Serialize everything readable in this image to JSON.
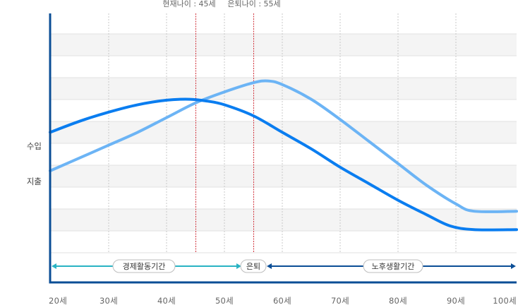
{
  "chart_data": {
    "type": "line",
    "title": "",
    "xlabel": "",
    "ylabel": "",
    "x_ticks": [
      "20세",
      "30세",
      "40세",
      "50세",
      "60세",
      "70세",
      "80세",
      "90세",
      "100세"
    ],
    "x_range": [
      20,
      100
    ],
    "y_labels": [
      "수입",
      "지출"
    ],
    "grid": true,
    "series": [
      {
        "name": "수입",
        "color": "#0a7df0",
        "points": [
          [
            20,
            0.61
          ],
          [
            25,
            0.67
          ],
          [
            30,
            0.72
          ],
          [
            35,
            0.76
          ],
          [
            40,
            0.785
          ],
          [
            44,
            0.79
          ],
          [
            47,
            0.78
          ],
          [
            50,
            0.76
          ],
          [
            55,
            0.7
          ],
          [
            60,
            0.61
          ],
          [
            65,
            0.52
          ],
          [
            70,
            0.42
          ],
          [
            75,
            0.33
          ],
          [
            80,
            0.24
          ],
          [
            85,
            0.16
          ],
          [
            89,
            0.1
          ],
          [
            93,
            0.08
          ],
          [
            100,
            0.08
          ]
        ]
      },
      {
        "name": "지출",
        "color": "#6cb4f5",
        "points": [
          [
            20,
            0.4
          ],
          [
            25,
            0.47
          ],
          [
            30,
            0.54
          ],
          [
            35,
            0.61
          ],
          [
            40,
            0.69
          ],
          [
            45,
            0.77
          ],
          [
            50,
            0.83
          ],
          [
            55,
            0.88
          ],
          [
            57.5,
            0.89
          ],
          [
            60,
            0.87
          ],
          [
            65,
            0.79
          ],
          [
            70,
            0.68
          ],
          [
            75,
            0.56
          ],
          [
            80,
            0.44
          ],
          [
            85,
            0.32
          ],
          [
            90,
            0.22
          ],
          [
            93,
            0.18
          ],
          [
            100,
            0.18
          ]
        ]
      }
    ],
    "markers": [
      {
        "label": "현재나이 : 45세",
        "age": 45
      },
      {
        "label": "은퇴나이 : 55세",
        "age": 55
      }
    ],
    "periods": [
      {
        "label": "경제활동기간",
        "from": 20,
        "to": 55,
        "color": "#29b3c3"
      },
      {
        "label": "은퇴",
        "at": 55
      },
      {
        "label": "노후생활기간",
        "from": 55,
        "to": 100,
        "color": "#0b4e96"
      }
    ]
  }
}
